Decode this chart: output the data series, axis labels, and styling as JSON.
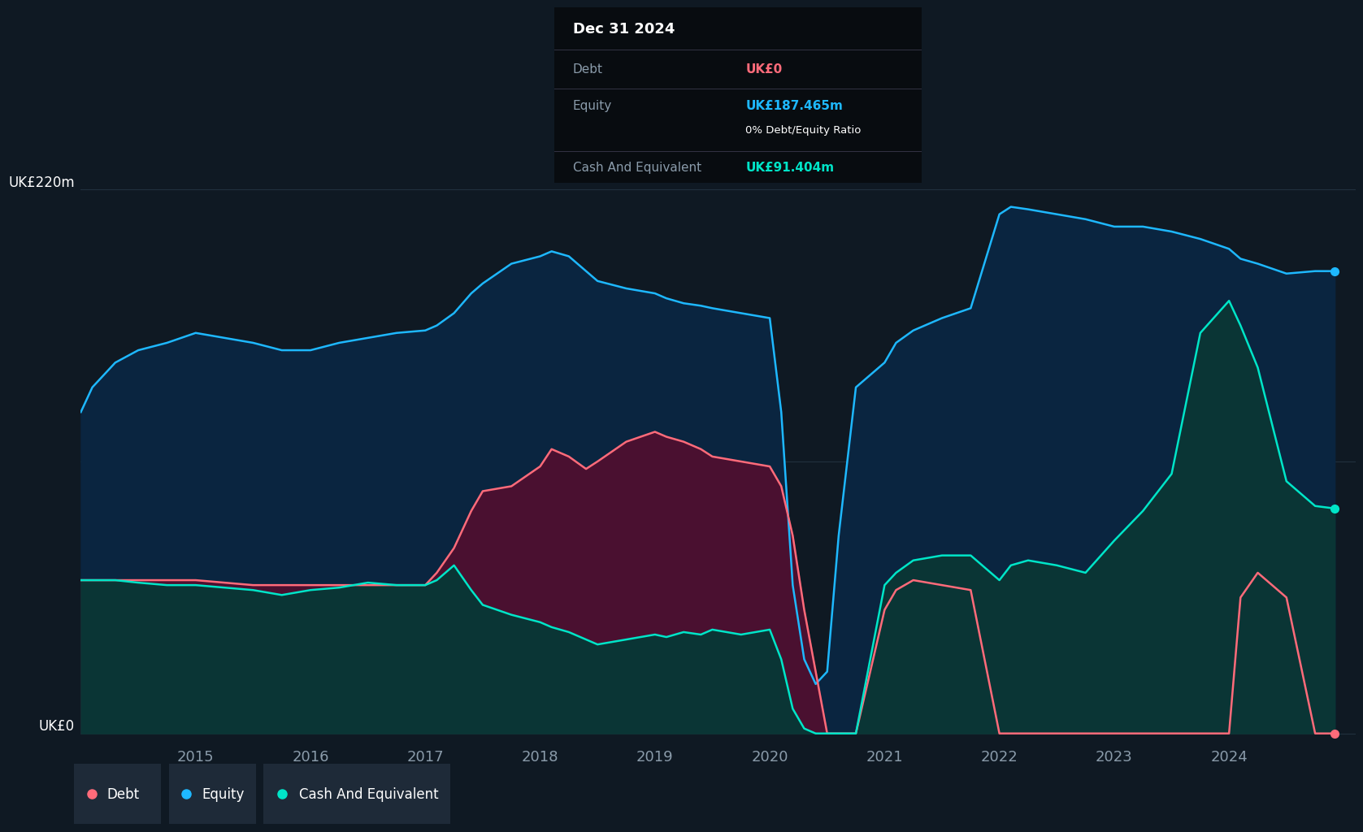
{
  "bg_color": "#0f1923",
  "plot_bg_color": "#0f1923",
  "equity_color": "#1eb8ff",
  "equity_fill": "#0a2540",
  "debt_color": "#ff6b7a",
  "debt_fill": "#4a1030",
  "cash_color": "#00e5c8",
  "cash_fill": "#0a3535",
  "grid_color": "#2a3a4a",
  "text_color": "#ffffff",
  "label_color": "#8a9baa",
  "legend_bg": "#1e2a38",
  "ylabel_220": "UK£220m",
  "ylabel_0": "UK£0",
  "tooltip_date": "Dec 31 2024",
  "tooltip_debt_label": "Debt",
  "tooltip_debt_value": "UK£0",
  "tooltip_equity_label": "Equity",
  "tooltip_equity_value": "UK£187.465m",
  "tooltip_ratio": "0% Debt/Equity Ratio",
  "tooltip_cash_label": "Cash And Equivalent",
  "tooltip_cash_value": "UK£91.404m",
  "years": [
    2014.0,
    2014.1,
    2014.3,
    2014.5,
    2014.75,
    2015.0,
    2015.25,
    2015.5,
    2015.75,
    2016.0,
    2016.25,
    2016.5,
    2016.75,
    2017.0,
    2017.1,
    2017.25,
    2017.4,
    2017.5,
    2017.75,
    2018.0,
    2018.1,
    2018.25,
    2018.4,
    2018.5,
    2018.75,
    2019.0,
    2019.1,
    2019.25,
    2019.4,
    2019.5,
    2019.75,
    2020.0,
    2020.1,
    2020.2,
    2020.3,
    2020.4,
    2020.5,
    2020.6,
    2020.7,
    2020.75,
    2021.0,
    2021.1,
    2021.25,
    2021.5,
    2021.75,
    2022.0,
    2022.1,
    2022.25,
    2022.5,
    2022.75,
    2023.0,
    2023.25,
    2023.5,
    2023.75,
    2024.0,
    2024.1,
    2024.25,
    2024.5,
    2024.75,
    2024.92
  ],
  "equity": [
    130,
    140,
    150,
    155,
    158,
    162,
    160,
    158,
    155,
    155,
    158,
    160,
    162,
    163,
    165,
    170,
    178,
    182,
    190,
    193,
    195,
    193,
    187,
    183,
    180,
    178,
    176,
    174,
    173,
    172,
    170,
    168,
    130,
    60,
    30,
    20,
    25,
    80,
    120,
    140,
    150,
    158,
    163,
    168,
    172,
    210,
    213,
    212,
    210,
    208,
    205,
    205,
    203,
    200,
    196,
    192,
    190,
    186,
    187,
    187
  ],
  "debt": [
    62,
    62,
    62,
    62,
    62,
    62,
    61,
    60,
    60,
    60,
    60,
    60,
    60,
    60,
    65,
    75,
    90,
    98,
    100,
    108,
    115,
    112,
    107,
    110,
    118,
    122,
    120,
    118,
    115,
    112,
    110,
    108,
    100,
    80,
    50,
    25,
    0,
    0,
    0,
    0,
    50,
    58,
    62,
    60,
    58,
    0,
    0,
    0,
    0,
    0,
    0,
    0,
    0,
    0,
    0,
    55,
    65,
    55,
    0,
    0
  ],
  "cash": [
    62,
    62,
    62,
    61,
    60,
    60,
    59,
    58,
    56,
    58,
    59,
    61,
    60,
    60,
    62,
    68,
    58,
    52,
    48,
    45,
    43,
    41,
    38,
    36,
    38,
    40,
    39,
    41,
    40,
    42,
    40,
    42,
    30,
    10,
    2,
    0,
    0,
    0,
    0,
    0,
    60,
    65,
    70,
    72,
    72,
    62,
    68,
    70,
    68,
    65,
    78,
    90,
    105,
    162,
    175,
    165,
    148,
    102,
    92,
    91
  ],
  "xlim": [
    2014.0,
    2025.1
  ],
  "ylim": [
    -2,
    240
  ],
  "xticks": [
    2015,
    2016,
    2017,
    2018,
    2019,
    2020,
    2021,
    2022,
    2023,
    2024
  ],
  "hlines": [
    0,
    110,
    220
  ],
  "legend_items": [
    {
      "label": "Debt",
      "color": "#ff6b7a"
    },
    {
      "label": "Equity",
      "color": "#1eb8ff"
    },
    {
      "label": "Cash And Equivalent",
      "color": "#00e5c8"
    }
  ]
}
